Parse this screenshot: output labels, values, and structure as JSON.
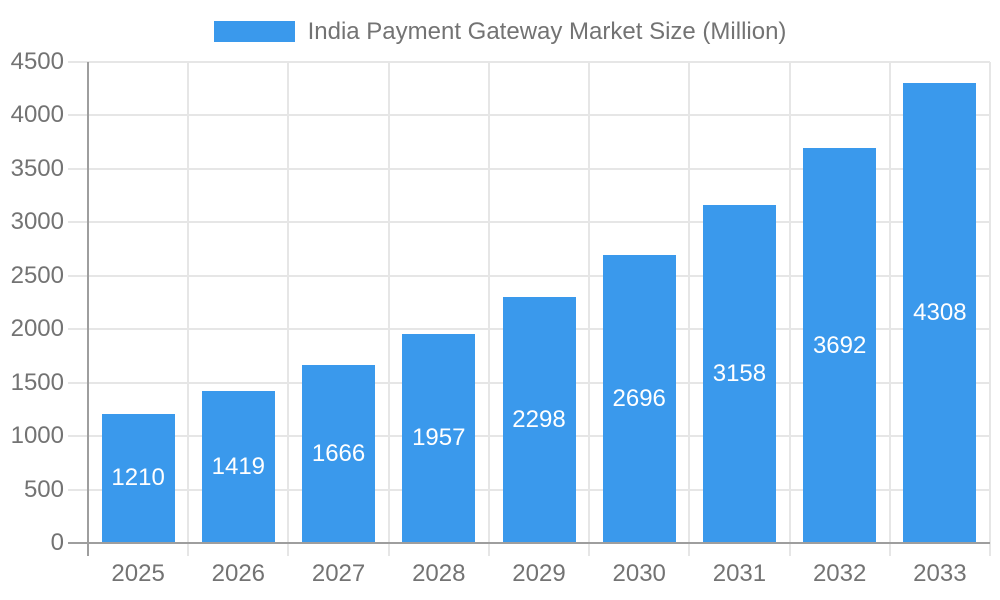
{
  "chart_data": {
    "type": "bar",
    "title": "India Payment Gateway Market Size (Million)",
    "legend_position": "top",
    "categories": [
      "2025",
      "2026",
      "2027",
      "2028",
      "2029",
      "2030",
      "2031",
      "2032",
      "2033"
    ],
    "series": [
      {
        "name": "India Payment Gateway Market Size (Million)",
        "values": [
          1210,
          1419,
          1666,
          1957,
          2298,
          2696,
          3158,
          3692,
          4308
        ]
      }
    ],
    "xlabel": "",
    "ylabel": "",
    "ylim": [
      0,
      4500
    ],
    "ytick_step": 500,
    "grid": true,
    "bar_value_labels_visible": true,
    "colors": {
      "bar": "#3a99ec",
      "bar_value_text": "#ffffff",
      "axis_text": "#737373",
      "legend_text": "#737373",
      "gridline": "#e6e6e6",
      "axis_line": "#9e9e9e",
      "background": "#ffffff"
    }
  }
}
